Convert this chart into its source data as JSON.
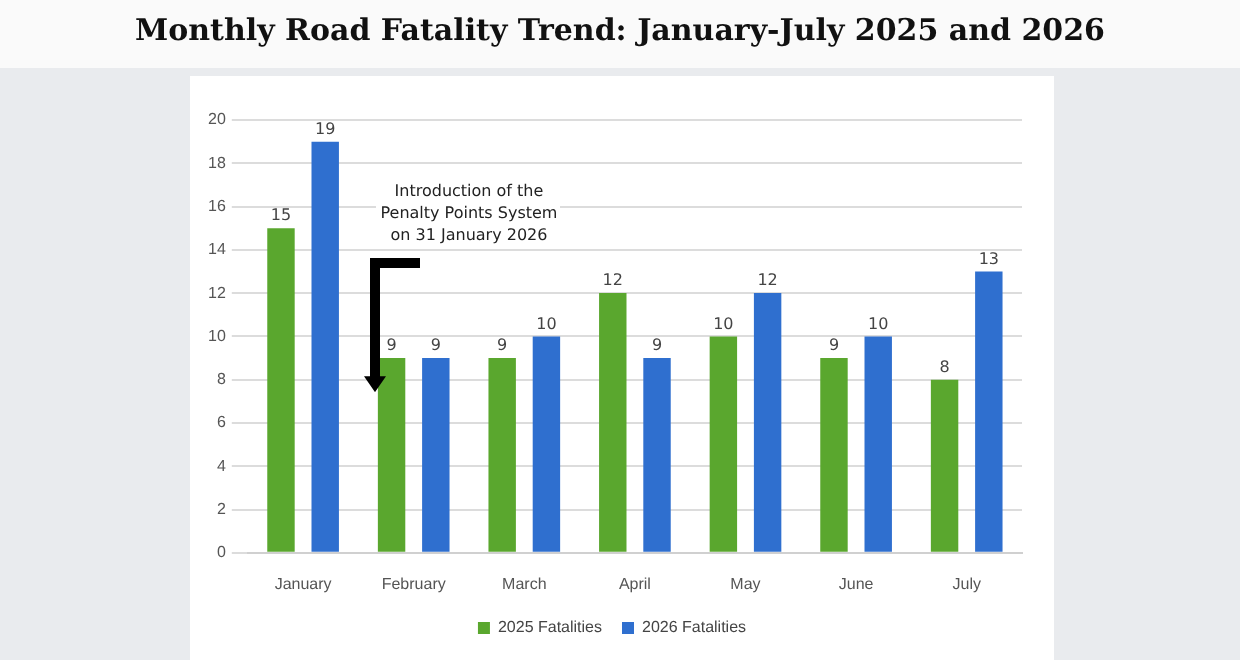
{
  "chart_data": {
    "type": "bar",
    "title": "Monthly Road Fatality Trend: January-July 2025 and 2026",
    "categories": [
      "January",
      "February",
      "March",
      "April",
      "May",
      "June",
      "July"
    ],
    "series": [
      {
        "name": "2025 Fatalities",
        "color": "#5aa72e",
        "values": [
          15,
          9,
          9,
          12,
          10,
          9,
          8
        ]
      },
      {
        "name": "2026 Fatalities",
        "color": "#2f6fcf",
        "values": [
          19,
          9,
          10,
          9,
          12,
          10,
          13
        ]
      }
    ],
    "ylim": [
      0,
      20
    ],
    "yticks": [
      0,
      2,
      4,
      6,
      8,
      10,
      12,
      14,
      16,
      18,
      20
    ],
    "grid": "y",
    "legend": "bottom",
    "data_labels": true,
    "annotations": [
      "Introduction of the Penalty Points System on 31 January 2026"
    ]
  }
}
